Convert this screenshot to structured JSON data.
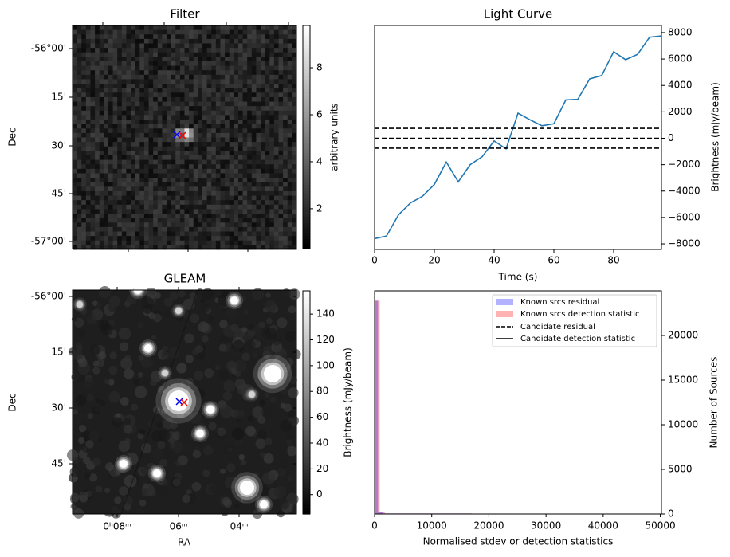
{
  "chart_data": [
    {
      "type": "heatmap",
      "title": "Filter",
      "ylabel": "Dec",
      "yticks": [
        "-56°00'",
        "15'",
        "30'",
        "45'",
        "-57°00'"
      ],
      "colorbar": {
        "label": "arbitrary units",
        "range": [
          0.3,
          9.8
        ],
        "ticks": [
          "2",
          "4",
          "6",
          "8"
        ],
        "tick_values": [
          2,
          4,
          6,
          8
        ]
      },
      "markers": [
        {
          "symbol": "x",
          "color": "#0000ff"
        },
        {
          "symbol": "x",
          "color": "#ff0000"
        }
      ]
    },
    {
      "type": "line",
      "title": "Light Curve",
      "xlabel": "Time (s)",
      "ylabel": "Brightness (mJy/beam)",
      "xlim": [
        0,
        96
      ],
      "ylim": [
        -8420,
        8540
      ],
      "xticks": [
        "0",
        "20",
        "40",
        "60",
        "80"
      ],
      "xtick_values": [
        0,
        20,
        40,
        60,
        80
      ],
      "yticks": [
        "8000",
        "6000",
        "4000",
        "2000",
        "0",
        "−2000",
        "−4000",
        "−6000",
        "−8000"
      ],
      "ytick_values": [
        8000,
        6000,
        4000,
        2000,
        0,
        -2000,
        -4000,
        -6000,
        -8000
      ],
      "series": [
        {
          "name": "light curve",
          "color": "#1f77b4",
          "x": [
            0,
            4,
            8,
            12,
            16,
            20,
            24,
            28,
            32,
            36,
            40,
            44,
            48,
            52,
            56,
            60,
            64,
            68,
            72,
            76,
            80,
            84,
            88,
            92,
            96
          ],
          "y": [
            -7600,
            -7400,
            -5800,
            -4900,
            -4400,
            -3500,
            -1800,
            -3300,
            -2000,
            -1400,
            -200,
            -800,
            1900,
            1400,
            950,
            1100,
            2900,
            2950,
            4500,
            4750,
            6550,
            5950,
            6350,
            7650,
            7750
          ]
        }
      ],
      "hlines": [
        750,
        0,
        -750
      ],
      "hline_style": "dashed"
    },
    {
      "type": "heatmap",
      "title": "GLEAM",
      "xlabel": "RA",
      "ylabel": "Dec",
      "xticks": [
        "0ʰ08ᵐ",
        "06ᵐ",
        "04ᵐ"
      ],
      "yticks": [
        "-56°00'",
        "15'",
        "30'",
        "45'"
      ],
      "colorbar": {
        "label": "Brightness (mJy/beam)",
        "range": [
          -15,
          158
        ],
        "ticks": [
          "0",
          "20",
          "40",
          "60",
          "80",
          "100",
          "120",
          "140"
        ],
        "tick_values": [
          0,
          20,
          40,
          60,
          80,
          100,
          120,
          140
        ]
      },
      "markers": [
        {
          "symbol": "x",
          "color": "#0000ff"
        },
        {
          "symbol": "x",
          "color": "#ff0000"
        }
      ]
    },
    {
      "type": "bar",
      "title": "",
      "xlabel": "Normalised stdev or detection statistics",
      "ylabel": "Number of Sources",
      "xlim": [
        0,
        50200
      ],
      "ylim": [
        0,
        25000
      ],
      "xticks": [
        "0",
        "10000",
        "20000",
        "30000",
        "40000",
        "50000"
      ],
      "xtick_values": [
        0,
        10000,
        20000,
        30000,
        40000,
        50000
      ],
      "yticks": [
        "0",
        "5000",
        "10000",
        "15000",
        "20000"
      ],
      "ytick_values": [
        0,
        5000,
        10000,
        15000,
        20000
      ],
      "series": [
        {
          "name": "Known srcs residual",
          "color": "#0000ff",
          "alpha": 0.3,
          "bins": [
            [
              0,
              600,
              23900
            ],
            [
              600,
              1400,
              250
            ],
            [
              1400,
              17000,
              60
            ],
            [
              17000,
              27000,
              40
            ]
          ]
        },
        {
          "name": "Known srcs detection statistic",
          "color": "#ff0000",
          "alpha": 0.3,
          "bins": [
            [
              0,
              900,
              23900
            ],
            [
              900,
              1800,
              250
            ],
            [
              1800,
              17000,
              60
            ],
            [
              17000,
              24000,
              50
            ],
            [
              25000,
              27000,
              40
            ],
            [
              30500,
              32500,
              40
            ],
            [
              34000,
              35500,
              30
            ],
            [
              43000,
              44000,
              30
            ],
            [
              47000,
              48000,
              30
            ]
          ]
        }
      ],
      "legend": {
        "position": "top-right",
        "entries": [
          "Known srcs residual",
          "Known srcs detection statistic",
          "Candidate residual",
          "Candidate detection statistic"
        ]
      }
    }
  ]
}
